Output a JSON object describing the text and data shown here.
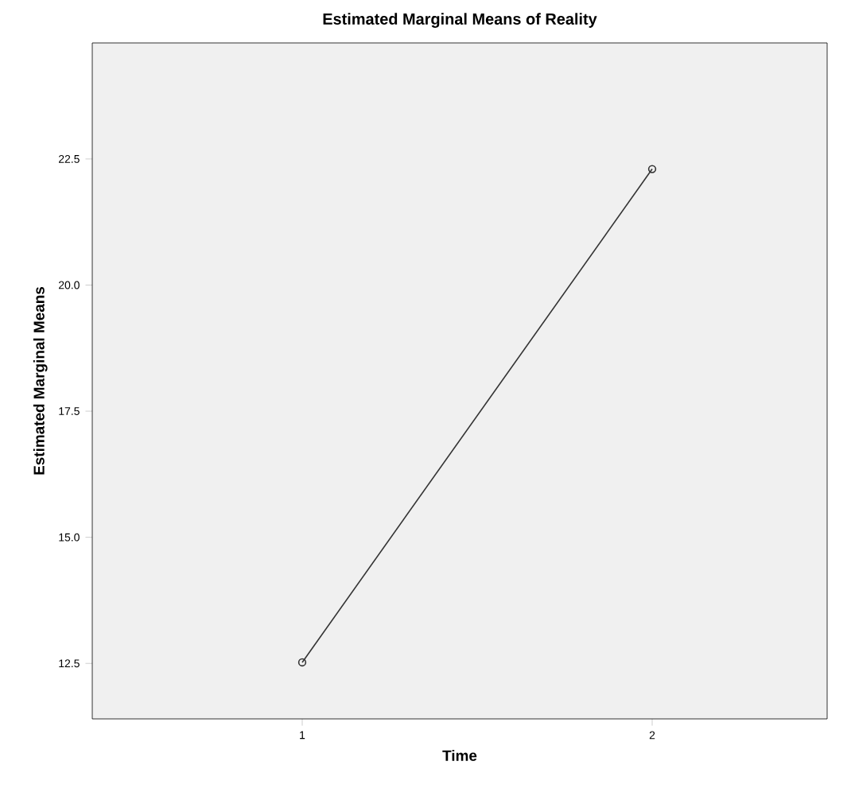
{
  "chart_data": {
    "type": "line",
    "title": "Estimated Marginal Means of Reality",
    "xlabel": "Time",
    "ylabel": "Estimated Marginal Means",
    "categories": [
      "1",
      "2"
    ],
    "series": [
      {
        "color": "#333333",
        "values": [
          12.52,
          22.3
        ]
      }
    ],
    "ylim": [
      11.4,
      24.8
    ],
    "yticks": [
      {
        "value": 12.5,
        "label": "12.5"
      },
      {
        "value": 15,
        "label": "15.0"
      },
      {
        "value": 17.5,
        "label": "17.5"
      },
      {
        "value": 20,
        "label": "20.0"
      },
      {
        "value": 22.5,
        "label": "22.5"
      }
    ],
    "marker": "circle"
  }
}
